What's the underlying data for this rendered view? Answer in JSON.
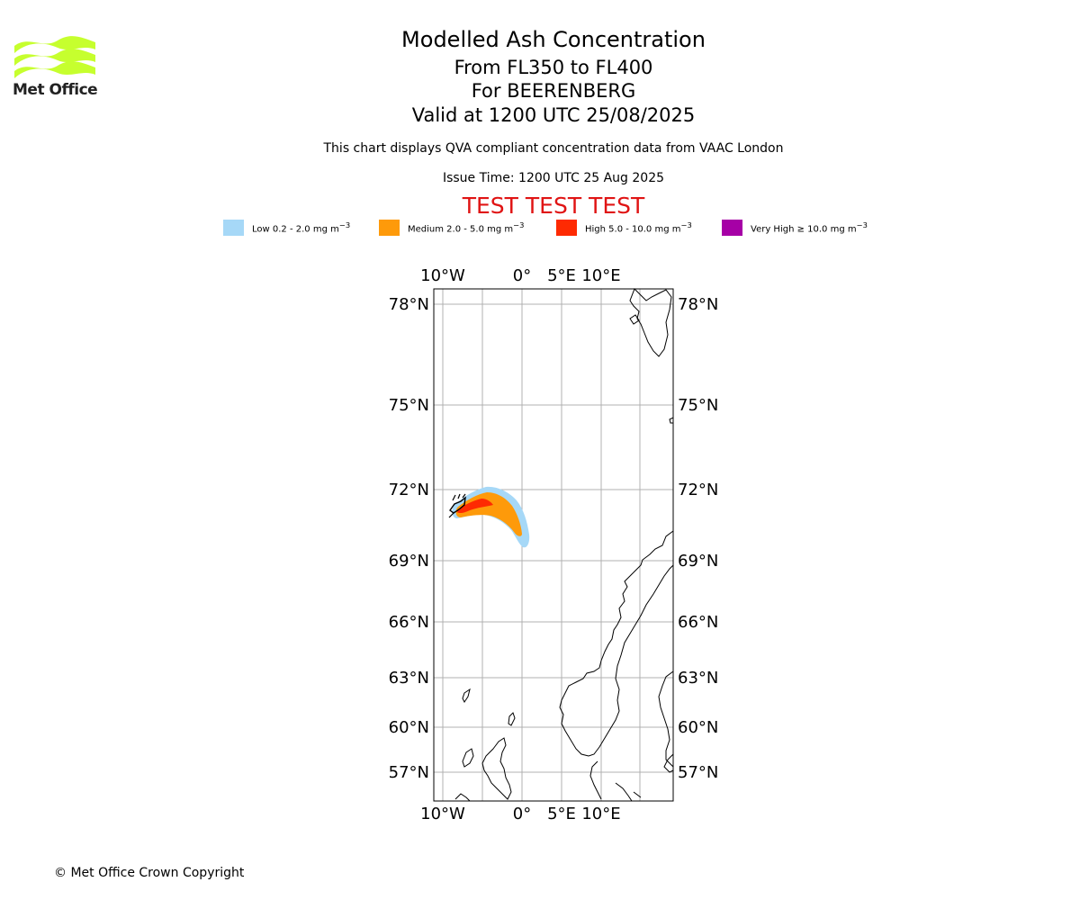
{
  "header": {
    "logo_text": "Met Office",
    "title": "Modelled Ash Concentration",
    "flight_levels": "From FL350 to FL400",
    "volcano": "For BEERENBERG",
    "valid_time": "Valid at 1200 UTC 25/08/2025",
    "description": "This chart displays QVA compliant concentration data from VAAC London",
    "issue_time": "Issue Time: 1200 UTC 25 Aug 2025",
    "test_banner": "TEST TEST TEST"
  },
  "legend": [
    {
      "label": "Low 0.2 - 2.0 mg m",
      "unit_exp": "−3",
      "color": "#a6d8f7"
    },
    {
      "label": "Medium 2.0 - 5.0 mg m",
      "unit_exp": "−3",
      "color": "#fe9a0a"
    },
    {
      "label": "High 5.0 - 10.0 mg m",
      "unit_exp": "−3",
      "color": "#fe2a02"
    },
    {
      "label": "Very High ≥ 10.0 mg m",
      "unit_exp": "−3",
      "color": "#a600a6"
    }
  ],
  "map": {
    "lon_labels": [
      "10°W",
      "0°",
      "5°E",
      "10°E"
    ],
    "lat_labels": [
      "78°N",
      "75°N",
      "72°N",
      "69°N",
      "66°N",
      "63°N",
      "60°N",
      "57°N"
    ],
    "grid_color": "#b0b0b0",
    "ash_colors": {
      "low": "#a6d8f7",
      "medium": "#fe9a0a",
      "high": "#fe2a02"
    },
    "volcano_marker": "volcano-triangle-icon"
  },
  "footer": {
    "copyright": "© Met Office Crown Copyright"
  }
}
